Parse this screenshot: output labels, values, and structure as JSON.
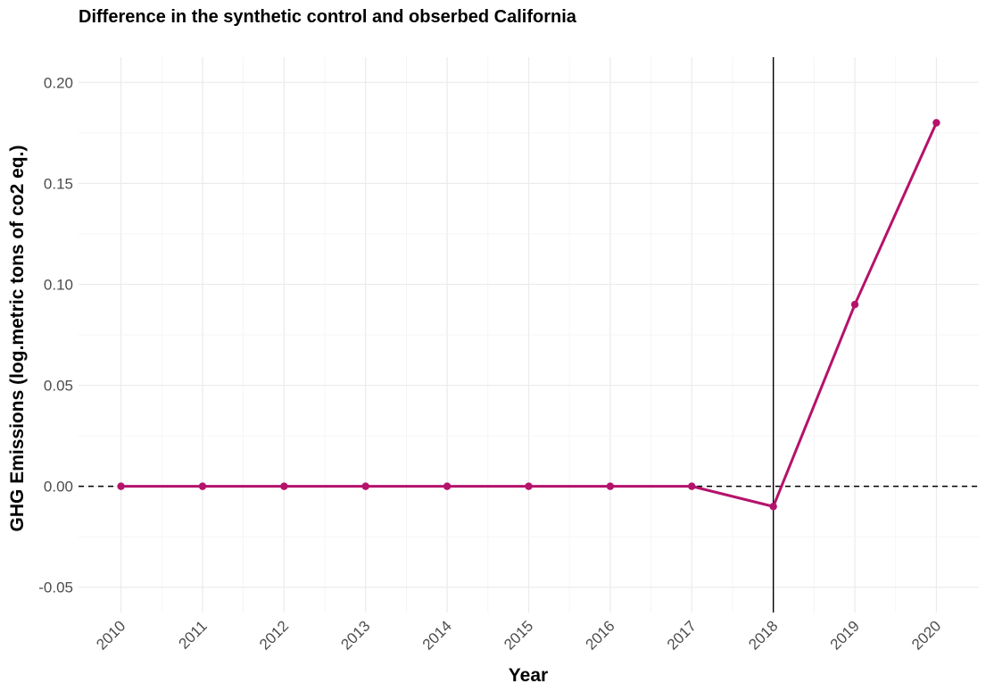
{
  "chart_data": {
    "type": "line",
    "title": "Difference in the synthetic control and obserbed California",
    "xlabel": "Year",
    "ylabel": "GHG Emissions (log.metric tons of co2 eq.)",
    "x": [
      "2010",
      "2011",
      "2012",
      "2013",
      "2014",
      "2015",
      "2016",
      "2017",
      "2018",
      "2019",
      "2020"
    ],
    "series": [
      {
        "values": [
          0,
          0,
          0,
          0,
          0,
          0,
          0,
          0,
          -0.01,
          0.09,
          0.18
        ],
        "color": "#b5126b"
      }
    ],
    "y_ticks": [
      "-0.05",
      "0.00",
      "0.05",
      "0.10",
      "0.15",
      "0.20"
    ],
    "ylim": [
      -0.0625,
      0.2125
    ],
    "reference_lines": {
      "vertical_at": "2018",
      "vertical_color": "#000000",
      "horizontal_at": 0,
      "horizontal_style": "dashed",
      "horizontal_color": "#000000"
    },
    "grid": true,
    "legend": "none"
  }
}
